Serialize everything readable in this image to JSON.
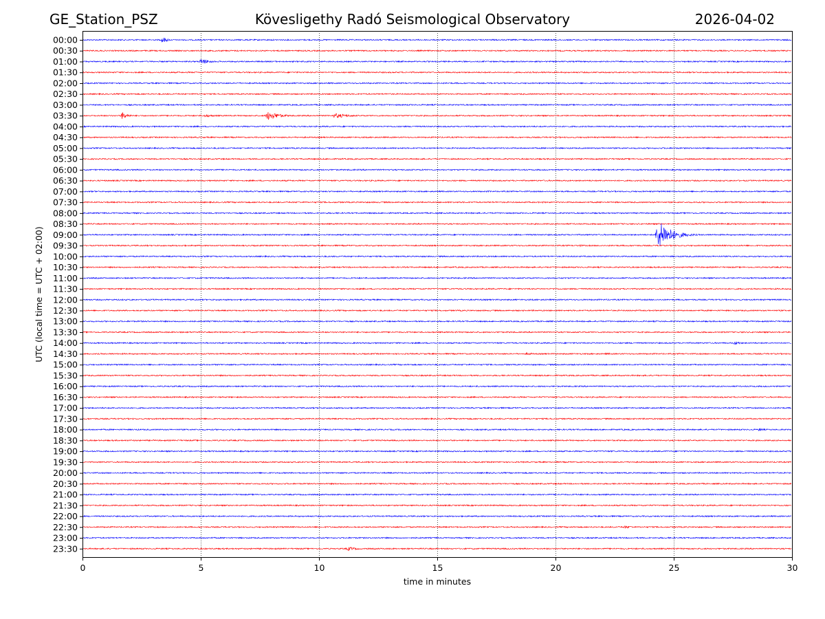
{
  "header": {
    "station": "GE_Station_PSZ",
    "title": "Kövesligethy Radó Seismological Observatory",
    "date": "2026-04-02"
  },
  "chart_data": {
    "type": "line",
    "title": "Kövesligethy Radó Seismological Observatory",
    "xlabel": "time in minutes",
    "ylabel": "UTC (local time = UTC + 02:00)",
    "xlim": [
      0,
      30
    ],
    "xticks": [
      0,
      5,
      10,
      15,
      20,
      25,
      30
    ],
    "grid": "vertical dotted at x ticks",
    "row_labels": [
      "00:00",
      "00:30",
      "01:00",
      "01:30",
      "02:00",
      "02:30",
      "03:00",
      "03:30",
      "04:00",
      "04:30",
      "05:00",
      "05:30",
      "06:00",
      "06:30",
      "07:00",
      "07:30",
      "08:00",
      "08:30",
      "09:00",
      "09:30",
      "10:00",
      "10:30",
      "11:00",
      "11:30",
      "12:00",
      "12:30",
      "13:00",
      "13:30",
      "14:00",
      "14:30",
      "15:00",
      "15:30",
      "16:00",
      "16:30",
      "17:00",
      "17:30",
      "18:00",
      "18:30",
      "19:00",
      "19:30",
      "20:00",
      "20:30",
      "21:00",
      "21:30",
      "22:00",
      "22:30",
      "23:00",
      "23:30"
    ],
    "colors": [
      "#0000ff",
      "#ff0000"
    ],
    "events": [
      {
        "row": "00:00",
        "start": 3.3,
        "duration": 0.9,
        "amplitude": 7
      },
      {
        "row": "01:00",
        "start": 4.9,
        "duration": 1.6,
        "amplitude": 6
      },
      {
        "row": "03:30",
        "start": 1.6,
        "duration": 1.0,
        "amplitude": 8
      },
      {
        "row": "03:30",
        "start": 5.0,
        "duration": 2.5,
        "amplitude": 3
      },
      {
        "row": "03:30",
        "start": 7.7,
        "duration": 2.0,
        "amplitude": 9
      },
      {
        "row": "03:30",
        "start": 10.5,
        "duration": 2.6,
        "amplitude": 5
      },
      {
        "row": "07:30",
        "start": 19.4,
        "duration": 0.8,
        "amplitude": 2
      },
      {
        "row": "09:00",
        "start": 24.2,
        "duration": 2.2,
        "amplitude": 28
      },
      {
        "row": "09:30",
        "start": 20.9,
        "duration": 0.9,
        "amplitude": 3
      },
      {
        "row": "14:00",
        "start": 27.5,
        "duration": 1.2,
        "amplitude": 4
      },
      {
        "row": "14:30",
        "start": 18.7,
        "duration": 1.2,
        "amplitude": 3
      },
      {
        "row": "14:30",
        "start": 22.0,
        "duration": 2.0,
        "amplitude": 2
      },
      {
        "row": "18:00",
        "start": 28.5,
        "duration": 1.3,
        "amplitude": 3
      },
      {
        "row": "22:30",
        "start": 22.8,
        "duration": 1.8,
        "amplitude": 3
      },
      {
        "row": "23:30",
        "start": 11.1,
        "duration": 1.8,
        "amplitude": 4
      }
    ]
  }
}
